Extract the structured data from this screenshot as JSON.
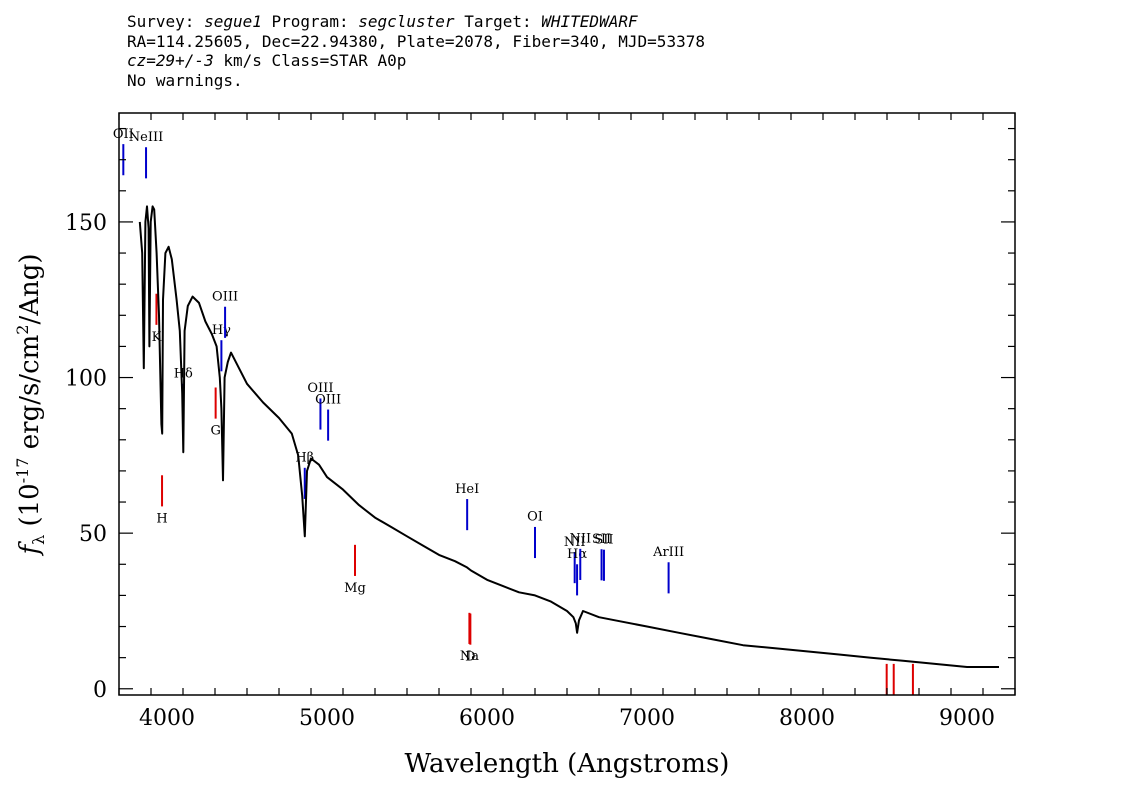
{
  "header": {
    "survey_label": "Survey:",
    "survey": "segue1",
    "program_label": "Program:",
    "program": "segcluster",
    "target_label": "Target:",
    "target": "WHITEDWARF",
    "line2": "RA=114.25605, Dec=22.94380, Plate=2078, Fiber=340, MJD=53378",
    "cz": "cz=29+/-3",
    "cz_units": "km/s",
    "class_text": "Class=STAR A0p",
    "warnings": "No warnings."
  },
  "chart_data": {
    "type": "line",
    "xlabel": "Wavelength (Angstroms)",
    "ylabel": "f_λ (10^-17 erg/s/cm^2/Ang)",
    "xlim": [
      3700,
      9300
    ],
    "ylim": [
      -2,
      185
    ],
    "xticks": [
      4000,
      5000,
      6000,
      7000,
      8000,
      9000
    ],
    "yticks": [
      0,
      50,
      100,
      150
    ],
    "series": [
      {
        "color": "#000000",
        "x": [
          3830,
          3845,
          3855,
          3865,
          3875,
          3885,
          3890,
          3898,
          3910,
          3920,
          3935,
          3950,
          3965,
          3970,
          3975,
          3990,
          4010,
          4030,
          4060,
          4080,
          4095,
          4102,
          4110,
          4130,
          4160,
          4200,
          4240,
          4280,
          4310,
          4330,
          4340,
          4350,
          4360,
          4380,
          4400,
          4450,
          4500,
          4600,
          4700,
          4780,
          4820,
          4845,
          4861,
          4875,
          4900,
          4950,
          5000,
          5100,
          5200,
          5300,
          5400,
          5500,
          5600,
          5700,
          5800,
          5875,
          5900,
          6000,
          6100,
          6200,
          6300,
          6400,
          6500,
          6540,
          6555,
          6563,
          6575,
          6600,
          6700,
          6800,
          7000,
          7200,
          7400,
          7600,
          7800,
          8000,
          8200,
          8400,
          8600,
          8800,
          9000,
          9200
        ],
        "y": [
          150,
          140,
          103,
          150,
          155,
          148,
          110,
          150,
          155,
          154,
          140,
          120,
          85,
          82,
          125,
          140,
          142,
          138,
          125,
          115,
          95,
          76,
          115,
          123,
          126,
          124,
          118,
          114,
          110,
          100,
          90,
          67,
          100,
          105,
          108,
          103,
          98,
          92,
          87,
          82,
          75,
          62,
          49,
          70,
          74,
          72,
          68,
          64,
          59,
          55,
          52,
          49,
          46,
          43,
          41,
          39,
          38,
          35,
          33,
          31,
          30,
          28,
          25,
          23,
          21,
          18,
          22,
          25,
          23,
          22,
          20,
          18,
          16,
          14,
          13,
          12,
          11,
          10,
          9,
          8,
          7,
          7
        ]
      }
    ],
    "emission_lines": [
      {
        "label": "OII",
        "x": 3727
      },
      {
        "label": "NeIII",
        "x": 3869
      },
      {
        "label": "Hδ",
        "x": 4102
      },
      {
        "label": "Hγ",
        "x": 4340
      },
      {
        "label": "OIII",
        "x": 4363
      },
      {
        "label": "Hβ",
        "x": 4861
      },
      {
        "label": "OIII",
        "x": 4959
      },
      {
        "label": "OIII",
        "x": 5007
      },
      {
        "label": "HeI",
        "x": 5876
      },
      {
        "label": "OI",
        "x": 6300
      },
      {
        "label": "NII",
        "x": 6548
      },
      {
        "label": "Hα",
        "x": 6563
      },
      {
        "label": "NII",
        "x": 6583
      },
      {
        "label": "SII",
        "x": 6716
      },
      {
        "label": "SII",
        "x": 6731
      },
      {
        "label": "ArIII",
        "x": 7135
      }
    ],
    "absorption_lines": [
      {
        "label": "K",
        "x": 3934
      },
      {
        "label": "H",
        "x": 3969
      },
      {
        "label": "G",
        "x": 4304
      },
      {
        "label": "Mg",
        "x": 5175
      },
      {
        "label": "Na",
        "x": 5890
      },
      {
        "label": "D",
        "x": 5896
      },
      {
        "label": "",
        "x": 8498
      },
      {
        "label": "",
        "x": 8542
      },
      {
        "label": "",
        "x": 8662
      }
    ]
  }
}
